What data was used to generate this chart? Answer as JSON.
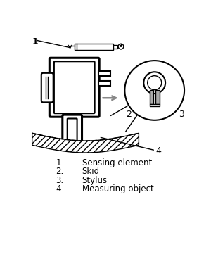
{
  "legend_items": [
    {
      "num": "1.",
      "label": "Sensing element"
    },
    {
      "num": "2.",
      "label": "Skid"
    },
    {
      "num": "3.",
      "label": "Stylus"
    },
    {
      "num": "4.",
      "label": "Measuring object"
    }
  ],
  "bg_color": "#ffffff",
  "line_color": "#000000"
}
